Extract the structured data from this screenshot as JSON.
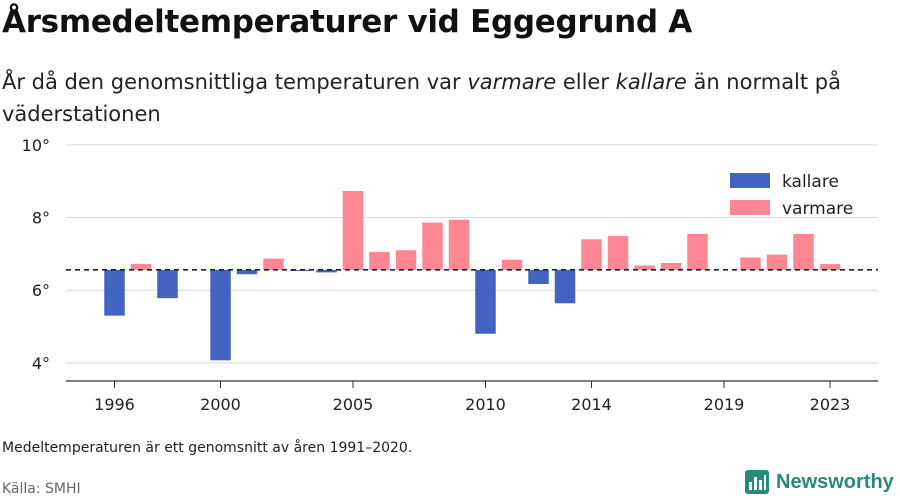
{
  "title": "Årsmedeltemperaturer vid Eggegrund A",
  "subtitle": {
    "part1": "År då den genomsnittliga temperaturen var ",
    "warm_word": "varmare",
    "part2": " eller ",
    "cold_word": "kallare",
    "part3": " än normalt på väderstationen"
  },
  "footnote": "Medeltemperaturen är ett genomsnitt av åren 1991–2020.",
  "source": "Källa: SMHI",
  "brand": "Newsworthy",
  "colors": {
    "cold": "#4263c2",
    "warm": "#ff8794",
    "brand": "#2a8a78"
  },
  "chart_data": {
    "type": "bar",
    "baseline": 6.56,
    "ylim": [
      3.5,
      10.3
    ],
    "yticks": [
      4,
      6,
      8,
      10
    ],
    "ytick_labels": [
      "4°",
      "6°",
      "8°",
      "10°"
    ],
    "xticks": [
      1996,
      2000,
      2005,
      2010,
      2014,
      2019,
      2023
    ],
    "grid": true,
    "legend_position": "top-right",
    "series": [
      {
        "key": "cold",
        "name": "kallare"
      },
      {
        "key": "warm",
        "name": "varmare"
      }
    ],
    "x": [
      1996,
      1997,
      1998,
      1999,
      2000,
      2001,
      2002,
      2003,
      2004,
      2005,
      2006,
      2007,
      2008,
      2009,
      2010,
      2011,
      2012,
      2013,
      2014,
      2015,
      2016,
      2017,
      2018,
      2019,
      2020,
      2021,
      2022,
      2023
    ],
    "values": [
      5.3,
      6.72,
      5.78,
      null,
      4.07,
      6.44,
      6.87,
      6.53,
      6.49,
      8.73,
      7.05,
      7.1,
      7.86,
      7.94,
      4.8,
      6.84,
      6.17,
      5.64,
      7.4,
      7.49,
      6.68,
      6.75,
      7.55,
      null,
      6.9,
      6.98,
      7.55,
      6.72
    ]
  }
}
